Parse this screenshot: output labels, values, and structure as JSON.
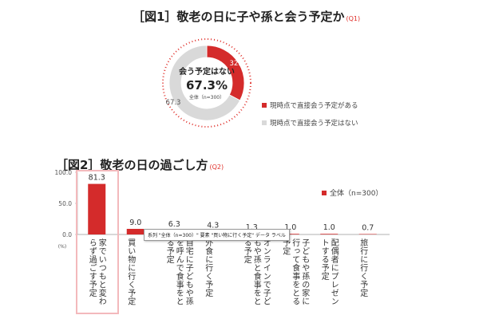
{
  "fig1": {
    "title": "［図1］敬老の日に子や孫と会う予定か",
    "tag": "(Q1)",
    "center_line1": "会う予定はない",
    "center_value": "67.3%",
    "center_base": "全体（n=300）",
    "legend": [
      "現時点で直接会う予定がある",
      "現時点で直接会う予定はない"
    ]
  },
  "fig2": {
    "title": "［図2］敬老の日の過ごし方",
    "tag": "(Q2)",
    "legend": "全体（n=300）",
    "unit": "(%)",
    "tooltip": "系列 \"全体（n=300）\" 要素 \"買い物に行く予定\" データ ラベル"
  },
  "chart_data": [
    {
      "type": "pie",
      "categories": [
        "現時点で直接会う予定がある",
        "現時点で直接会う予定はない"
      ],
      "values": [
        32.7,
        67.3
      ],
      "value_labels": [
        "32.7",
        "67.3"
      ],
      "colors": [
        "#d42b2b",
        "#d9d9d9"
      ]
    },
    {
      "type": "bar",
      "categories": [
        "家でいつもと変わらず過ごす予定",
        "買い物に行く予定",
        "自宅に子どもや孫を呼んで食事をとる予定",
        "外食に行く予定",
        "オンラインで子どもや孫と食事をとる予定",
        "子どもや孫の家に行って食事をとる予定",
        "配偶者にプレゼントする予定",
        "旅行に行く予定"
      ],
      "values": [
        81.3,
        9.0,
        6.3,
        4.3,
        1.3,
        1.0,
        1.0,
        0.7
      ],
      "value_labels": [
        "81.3",
        "9.0",
        "6.3",
        "4.3",
        "1.3",
        "1.0",
        "1.0",
        "0.7"
      ],
      "yticks": [
        "100.0",
        "50.0",
        "0.0"
      ],
      "ylim": [
        0,
        100
      ],
      "color": "#d42b2b"
    }
  ]
}
